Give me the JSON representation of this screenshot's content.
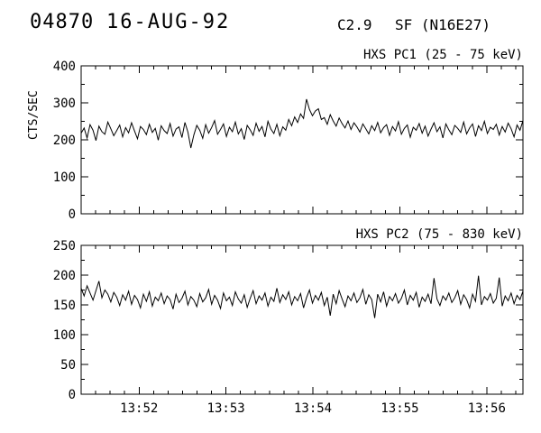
{
  "header": {
    "event_number": "04870",
    "date": "16-AUG-92",
    "goes_class": "C2.9",
    "flare_type_location": "SF (N16E27)"
  },
  "chart_data": [
    {
      "type": "line",
      "title": "HXS PC1 (25 - 75 keV)",
      "ylabel": "CTS/SEC",
      "ylim": [
        0,
        400
      ],
      "yticks": [
        0,
        100,
        200,
        300,
        400
      ],
      "y_minor_step": 50,
      "x_start_sec": 49880,
      "x_end_sec": 50185,
      "xticks_sec": [
        49920,
        49980,
        50040,
        50100,
        50160
      ],
      "xtick_labels": [
        "13:52",
        "13:53",
        "13:54",
        "13:55",
        "13:56"
      ],
      "show_x_labels": false,
      "values": [
        218,
        232,
        205,
        241,
        226,
        198,
        237,
        222,
        215,
        248,
        230,
        211,
        225,
        240,
        208,
        233,
        219,
        246,
        224,
        203,
        236,
        228,
        214,
        242,
        220,
        231,
        199,
        238,
        225,
        217,
        244,
        210,
        229,
        235,
        206,
        247,
        221,
        178,
        213,
        239,
        226,
        204,
        241,
        218,
        233,
        252,
        215,
        228,
        243,
        209,
        234,
        222,
        248,
        216,
        230,
        201,
        239,
        227,
        212,
        245,
        223,
        236,
        208,
        250,
        229,
        217,
        242,
        211,
        235,
        226,
        255,
        238,
        262,
        247,
        270,
        258,
        310,
        282,
        265,
        278,
        284,
        255,
        260,
        242,
        268,
        251,
        237,
        259,
        244,
        232,
        251,
        228,
        246,
        235,
        221,
        243,
        230,
        216,
        238,
        225,
        247,
        219,
        233,
        241,
        212,
        236,
        224,
        249,
        215,
        231,
        240,
        207,
        234,
        226,
        244,
        218,
        237,
        210,
        229,
        246,
        222,
        235,
        205,
        243,
        227,
        214,
        239,
        231,
        220,
        248,
        216,
        232,
        243,
        209,
        238,
        225,
        250,
        217,
        234,
        228,
        242,
        213,
        236,
        221,
        245,
        230,
        208,
        240,
        226,
        252
      ]
    },
    {
      "type": "line",
      "title": "HXS PC2 (75 - 830 keV)",
      "ylabel": "",
      "ylim": [
        0,
        250
      ],
      "yticks": [
        0,
        50,
        100,
        150,
        200,
        250
      ],
      "y_minor_step": 25,
      "x_start_sec": 49880,
      "x_end_sec": 50185,
      "xticks_sec": [
        49920,
        49980,
        50040,
        50100,
        50160
      ],
      "xtick_labels": [
        "13:52",
        "13:53",
        "13:54",
        "13:55",
        "13:56"
      ],
      "show_x_labels": true,
      "values": [
        178,
        165,
        182,
        170,
        158,
        174,
        190,
        162,
        175,
        168,
        155,
        171,
        163,
        149,
        167,
        158,
        173,
        151,
        166,
        159,
        145,
        168,
        156,
        172,
        148,
        163,
        157,
        170,
        152,
        165,
        159,
        143,
        168,
        154,
        161,
        173,
        150,
        164,
        158,
        147,
        169,
        155,
        162,
        176,
        151,
        166,
        158,
        144,
        170,
        157,
        163,
        149,
        172,
        160,
        153,
        167,
        146,
        161,
        174,
        152,
        165,
        158,
        170,
        148,
        163,
        156,
        178,
        154,
        167,
        159,
        172,
        150,
        164,
        157,
        169,
        145,
        162,
        175,
        153,
        166,
        158,
        171,
        149,
        163,
        132,
        168,
        152,
        174,
        160,
        147,
        165,
        157,
        170,
        154,
        162,
        176,
        151,
        167,
        159,
        128,
        168,
        155,
        172,
        148,
        164,
        157,
        169,
        153,
        161,
        175,
        150,
        166,
        158,
        171,
        146,
        163,
        156,
        168,
        152,
        195,
        160,
        149,
        165,
        158,
        170,
        154,
        162,
        174,
        151,
        167,
        159,
        145,
        168,
        156,
        199,
        150,
        164,
        158,
        169,
        153,
        161,
        196,
        148,
        165,
        157,
        170,
        152,
        166,
        159,
        173
      ]
    }
  ]
}
